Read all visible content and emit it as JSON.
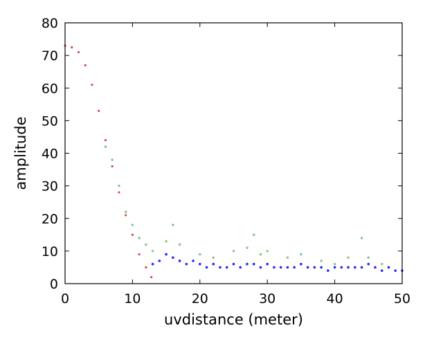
{
  "chart_data": {
    "type": "scatter",
    "title": "",
    "xlabel": "uvdistance (meter)",
    "ylabel": "amplitude",
    "xlim": [
      0,
      50
    ],
    "ylim": [
      0,
      80
    ],
    "x_ticks": [
      0,
      10,
      20,
      30,
      40,
      50
    ],
    "y_ticks": [
      0,
      10,
      20,
      30,
      40,
      50,
      60,
      70,
      80
    ],
    "x_tick_labels": [
      "0",
      "10",
      "20",
      "30",
      "40",
      "50"
    ],
    "y_tick_labels": [
      "0",
      "10",
      "20",
      "30",
      "40",
      "50",
      "60",
      "70",
      "80"
    ],
    "grid": false,
    "legend": "none",
    "series": [
      {
        "color": "#d62728",
        "points": [
          [
            0,
            73
          ],
          [
            1,
            72.5
          ],
          [
            2,
            71
          ],
          [
            3,
            67
          ],
          [
            4,
            61
          ],
          [
            5,
            53
          ],
          [
            6,
            44
          ],
          [
            7,
            36
          ],
          [
            8,
            28
          ],
          [
            9,
            21
          ],
          [
            10,
            15
          ],
          [
            11,
            9
          ],
          [
            12,
            5
          ],
          [
            12.8,
            2
          ]
        ]
      },
      {
        "color": "#2ca02c",
        "points": [
          [
            6,
            42
          ],
          [
            7,
            38
          ],
          [
            8,
            30
          ],
          [
            9,
            22
          ],
          [
            10,
            18
          ],
          [
            11,
            14
          ],
          [
            12,
            12
          ],
          [
            13,
            10
          ],
          [
            15,
            13
          ],
          [
            16,
            18
          ],
          [
            17,
            12
          ],
          [
            20,
            9
          ],
          [
            22,
            8
          ],
          [
            25,
            10
          ],
          [
            27,
            11
          ],
          [
            28,
            15
          ],
          [
            29,
            9
          ],
          [
            30,
            10
          ],
          [
            33,
            8
          ],
          [
            35,
            9
          ],
          [
            38,
            7
          ],
          [
            40,
            6
          ],
          [
            42,
            8
          ],
          [
            44,
            14
          ],
          [
            45,
            8
          ],
          [
            47,
            6
          ]
        ]
      },
      {
        "color": "#0000ff",
        "points": [
          [
            13,
            6
          ],
          [
            14,
            7
          ],
          [
            15,
            9
          ],
          [
            16,
            8
          ],
          [
            17,
            7
          ],
          [
            18,
            6
          ],
          [
            19,
            7
          ],
          [
            20,
            6
          ],
          [
            21,
            5
          ],
          [
            22,
            6
          ],
          [
            23,
            5
          ],
          [
            24,
            5
          ],
          [
            25,
            6
          ],
          [
            26,
            5
          ],
          [
            27,
            6
          ],
          [
            28,
            6
          ],
          [
            29,
            5
          ],
          [
            30,
            6
          ],
          [
            31,
            5
          ],
          [
            32,
            5
          ],
          [
            33,
            5
          ],
          [
            34,
            5
          ],
          [
            35,
            6
          ],
          [
            36,
            5
          ],
          [
            37,
            5
          ],
          [
            38,
            5
          ],
          [
            39,
            4
          ],
          [
            40,
            5
          ],
          [
            41,
            5
          ],
          [
            42,
            5
          ],
          [
            43,
            5
          ],
          [
            44,
            5
          ],
          [
            45,
            6
          ],
          [
            46,
            5
          ],
          [
            47,
            4
          ],
          [
            48,
            5
          ],
          [
            49,
            4
          ],
          [
            50,
            4
          ]
        ]
      }
    ]
  }
}
